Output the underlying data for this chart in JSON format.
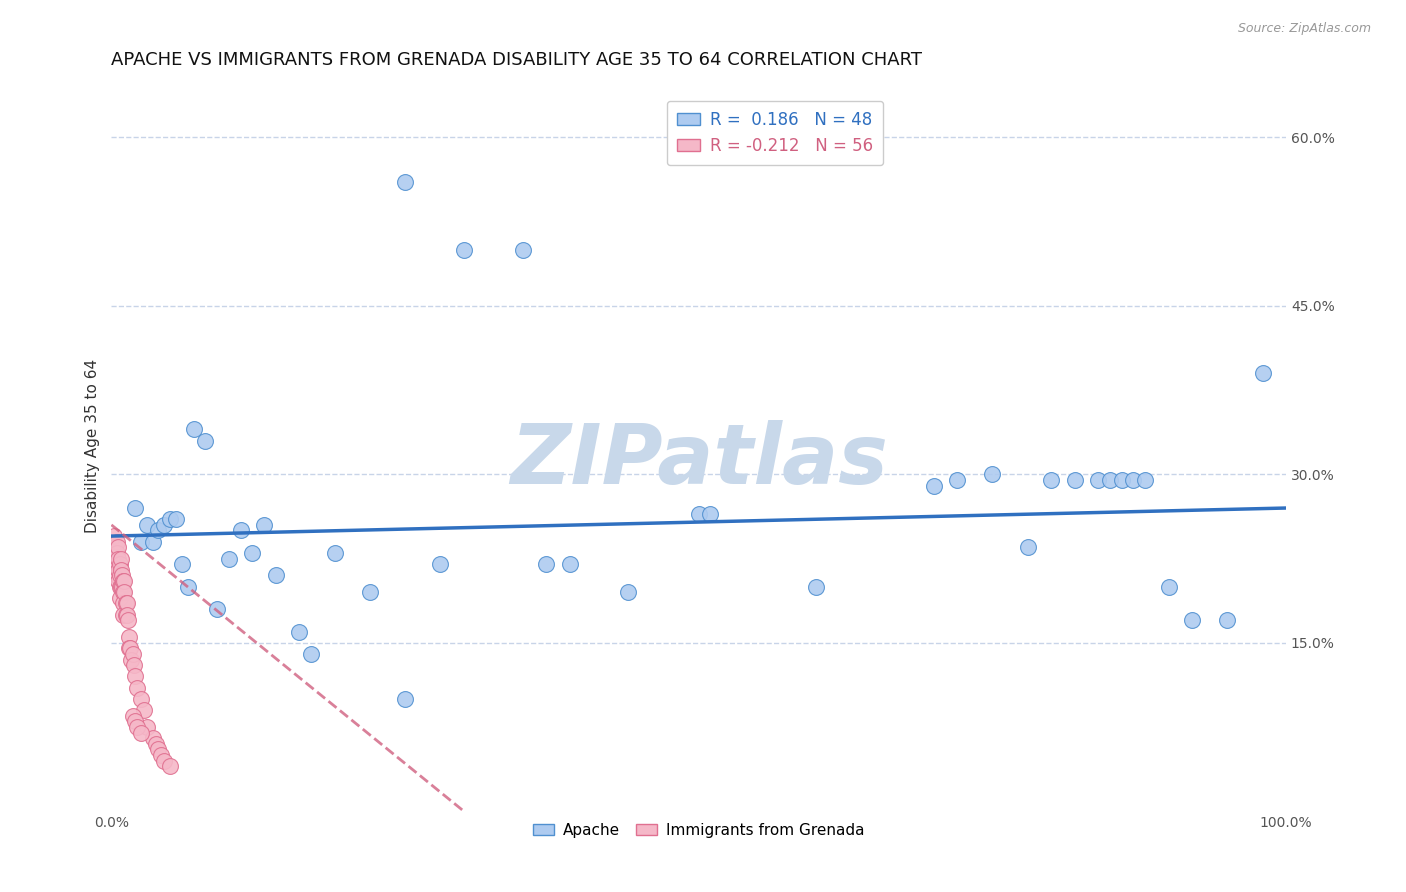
{
  "title": "APACHE VS IMMIGRANTS FROM GRENADA DISABILITY AGE 35 TO 64 CORRELATION CHART",
  "source": "Source: ZipAtlas.com",
  "ylabel": "Disability Age 35 to 64",
  "xlim": [
    0,
    1.0
  ],
  "ylim": [
    0,
    0.65
  ],
  "yticks": [
    0.15,
    0.3,
    0.45,
    0.6
  ],
  "ytick_labels": [
    "15.0%",
    "30.0%",
    "45.0%",
    "60.0%"
  ],
  "R_apache": 0.186,
  "N_apache": 48,
  "R_grenada": -0.212,
  "N_grenada": 56,
  "apache_color": "#aecbf0",
  "grenada_color": "#f5b8c8",
  "apache_edge_color": "#5090d0",
  "grenada_edge_color": "#e07090",
  "apache_line_color": "#3070c0",
  "grenada_line_color": "#d06080",
  "apache_scatter_x": [
    0.02,
    0.025,
    0.03,
    0.035,
    0.04,
    0.045,
    0.05,
    0.055,
    0.06,
    0.065,
    0.07,
    0.08,
    0.09,
    0.1,
    0.11,
    0.12,
    0.13,
    0.14,
    0.16,
    0.17,
    0.19,
    0.22,
    0.25,
    0.28,
    0.25,
    0.3,
    0.35,
    0.37,
    0.39,
    0.44,
    0.5,
    0.51,
    0.6,
    0.7,
    0.72,
    0.75,
    0.78,
    0.8,
    0.82,
    0.84,
    0.85,
    0.86,
    0.87,
    0.88,
    0.9,
    0.92,
    0.95,
    0.98
  ],
  "apache_scatter_y": [
    0.27,
    0.24,
    0.255,
    0.24,
    0.25,
    0.255,
    0.26,
    0.26,
    0.22,
    0.2,
    0.34,
    0.33,
    0.18,
    0.225,
    0.25,
    0.23,
    0.255,
    0.21,
    0.16,
    0.14,
    0.23,
    0.195,
    0.1,
    0.22,
    0.56,
    0.5,
    0.5,
    0.22,
    0.22,
    0.195,
    0.265,
    0.265,
    0.2,
    0.29,
    0.295,
    0.3,
    0.235,
    0.295,
    0.295,
    0.295,
    0.295,
    0.295,
    0.295,
    0.295,
    0.2,
    0.17,
    0.17,
    0.39
  ],
  "grenada_scatter_x": [
    0.002,
    0.003,
    0.003,
    0.003,
    0.004,
    0.004,
    0.004,
    0.005,
    0.005,
    0.005,
    0.005,
    0.006,
    0.006,
    0.006,
    0.006,
    0.007,
    0.007,
    0.007,
    0.007,
    0.008,
    0.008,
    0.008,
    0.009,
    0.009,
    0.01,
    0.01,
    0.01,
    0.01,
    0.011,
    0.011,
    0.012,
    0.012,
    0.013,
    0.013,
    0.014,
    0.015,
    0.015,
    0.016,
    0.017,
    0.018,
    0.019,
    0.02,
    0.022,
    0.025,
    0.028,
    0.03,
    0.035,
    0.038,
    0.04,
    0.042,
    0.045,
    0.05,
    0.018,
    0.02,
    0.022,
    0.025
  ],
  "grenada_scatter_y": [
    0.245,
    0.235,
    0.225,
    0.215,
    0.23,
    0.22,
    0.21,
    0.24,
    0.23,
    0.22,
    0.21,
    0.235,
    0.225,
    0.215,
    0.205,
    0.22,
    0.21,
    0.2,
    0.19,
    0.225,
    0.215,
    0.2,
    0.21,
    0.2,
    0.205,
    0.195,
    0.185,
    0.175,
    0.205,
    0.195,
    0.185,
    0.175,
    0.185,
    0.175,
    0.17,
    0.155,
    0.145,
    0.145,
    0.135,
    0.14,
    0.13,
    0.12,
    0.11,
    0.1,
    0.09,
    0.075,
    0.065,
    0.06,
    0.055,
    0.05,
    0.045,
    0.04,
    0.085,
    0.08,
    0.075,
    0.07
  ],
  "background_color": "#ffffff",
  "grid_color": "#c8d4e8",
  "watermark": "ZIPatlas",
  "watermark_color": "#c8d8ea",
  "title_fontsize": 13,
  "axis_label_fontsize": 11,
  "tick_fontsize": 10,
  "legend_fontsize": 12
}
